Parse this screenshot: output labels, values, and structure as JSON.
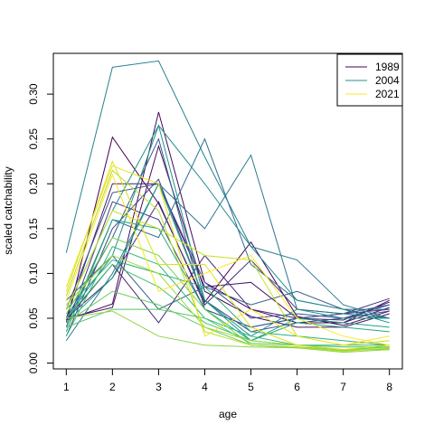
{
  "chart_data": {
    "type": "line",
    "title": "",
    "xlabel": "age",
    "ylabel": "scaled catchability",
    "x": [
      1,
      2,
      3,
      4,
      5,
      6,
      7,
      8
    ],
    "xlim": [
      0.72,
      8.28
    ],
    "ylim": [
      -0.0065,
      0.3455
    ],
    "xticks": [
      "1",
      "2",
      "3",
      "4",
      "5",
      "6",
      "7",
      "8"
    ],
    "yticks": [
      "0.00",
      "0.05",
      "0.10",
      "0.15",
      "0.20",
      "0.25",
      "0.30"
    ],
    "grid": false,
    "legend_position": "top-right",
    "legend": [
      {
        "label": "1989",
        "color": "#440154"
      },
      {
        "label": "2004",
        "color": "#21908C"
      },
      {
        "label": "2021",
        "color": "#FDE725"
      }
    ],
    "series": [
      {
        "color": "#440154",
        "values": [
          0.045,
          0.252,
          0.178,
          0.068,
          0.135,
          0.052,
          0.042,
          0.058
        ]
      },
      {
        "color": "#46085c",
        "values": [
          0.048,
          0.066,
          0.28,
          0.09,
          0.06,
          0.045,
          0.045,
          0.062
        ]
      },
      {
        "color": "#471063",
        "values": [
          0.05,
          0.062,
          0.242,
          0.08,
          0.052,
          0.04,
          0.04,
          0.055
        ]
      },
      {
        "color": "#481b6d",
        "values": [
          0.05,
          0.2,
          0.2,
          0.085,
          0.09,
          0.05,
          0.045,
          0.07
        ]
      },
      {
        "color": "#482576",
        "values": [
          0.048,
          0.11,
          0.045,
          0.12,
          0.06,
          0.05,
          0.048,
          0.068
        ]
      },
      {
        "color": "#46317e",
        "values": [
          0.05,
          0.095,
          0.18,
          0.065,
          0.115,
          0.06,
          0.055,
          0.072
        ]
      },
      {
        "color": "#443a83",
        "values": [
          0.04,
          0.18,
          0.16,
          0.06,
          0.04,
          0.05,
          0.055,
          0.06
        ]
      },
      {
        "color": "#404588",
        "values": [
          0.03,
          0.15,
          0.205,
          0.07,
          0.035,
          0.045,
          0.05,
          0.065
        ]
      },
      {
        "color": "#3c4f8a",
        "values": [
          0.06,
          0.19,
          0.2,
          0.09,
          0.05,
          0.055,
          0.05,
          0.058
        ]
      },
      {
        "color": "#375a8c",
        "values": [
          0.05,
          0.14,
          0.25,
          0.06,
          0.04,
          0.05,
          0.055,
          0.065
        ]
      },
      {
        "color": "#33638d",
        "values": [
          0.07,
          0.12,
          0.06,
          0.085,
          0.065,
          0.08,
          0.06,
          0.06
        ]
      },
      {
        "color": "#2e6d8e",
        "values": [
          0.04,
          0.16,
          0.14,
          0.25,
          0.11,
          0.07,
          0.06,
          0.05
        ]
      },
      {
        "color": "#2a768e",
        "values": [
          0.025,
          0.1,
          0.2,
          0.15,
          0.232,
          0.06,
          0.055,
          0.05
        ]
      },
      {
        "color": "#26818e",
        "values": [
          0.123,
          0.33,
          0.337,
          0.23,
          0.13,
          0.115,
          0.065,
          0.05
        ]
      },
      {
        "color": "#228b8d",
        "values": [
          0.06,
          0.17,
          0.265,
          0.2,
          0.13,
          0.07,
          0.06,
          0.045
        ]
      },
      {
        "color": "#1f958b",
        "values": [
          0.05,
          0.12,
          0.265,
          0.07,
          0.03,
          0.06,
          0.05,
          0.05
        ]
      },
      {
        "color": "#1fa088",
        "values": [
          0.045,
          0.095,
          0.2,
          0.07,
          0.025,
          0.05,
          0.045,
          0.04
        ]
      },
      {
        "color": "#22a884",
        "values": [
          0.035,
          0.16,
          0.15,
          0.06,
          0.025,
          0.045,
          0.04,
          0.035
        ]
      },
      {
        "color": "#2ab07f",
        "values": [
          0.06,
          0.115,
          0.1,
          0.085,
          0.035,
          0.03,
          0.025,
          0.02
        ]
      },
      {
        "color": "#35b779",
        "values": [
          0.03,
          0.13,
          0.11,
          0.05,
          0.03,
          0.02,
          0.02,
          0.02
        ]
      },
      {
        "color": "#44bf70",
        "values": [
          0.05,
          0.11,
          0.085,
          0.045,
          0.025,
          0.02,
          0.018,
          0.018
        ]
      },
      {
        "color": "#54c568",
        "values": [
          0.04,
          0.06,
          0.06,
          0.05,
          0.022,
          0.02,
          0.015,
          0.015
        ]
      },
      {
        "color": "#66cb5d",
        "values": [
          0.045,
          0.08,
          0.065,
          0.04,
          0.02,
          0.018,
          0.015,
          0.018
        ]
      },
      {
        "color": "#7ad151",
        "values": [
          0.055,
          0.14,
          0.12,
          0.06,
          0.02,
          0.017,
          0.014,
          0.016
        ]
      },
      {
        "color": "#8ed645",
        "values": [
          0.05,
          0.058,
          0.03,
          0.02,
          0.018,
          0.017,
          0.012,
          0.015
        ]
      },
      {
        "color": "#a2da37",
        "values": [
          0.065,
          0.12,
          0.1,
          0.04,
          0.025,
          0.02,
          0.015,
          0.016
        ]
      },
      {
        "color": "#b5de2b",
        "values": [
          0.075,
          0.215,
          0.17,
          0.035,
          0.02,
          0.018,
          0.013,
          0.017
        ]
      },
      {
        "color": "#c8e020",
        "values": [
          0.06,
          0.17,
          0.15,
          0.12,
          0.115,
          0.03,
          0.02,
          0.025
        ]
      },
      {
        "color": "#dde318",
        "values": [
          0.08,
          0.225,
          0.11,
          0.11,
          0.04,
          0.02,
          0.015,
          0.02
        ]
      },
      {
        "color": "#eee51c",
        "values": [
          0.085,
          0.22,
          0.2,
          0.03,
          0.06,
          0.03,
          0.02,
          0.03
        ]
      },
      {
        "color": "#fde725",
        "values": [
          0.07,
          0.21,
          0.08,
          0.1,
          0.12,
          0.05,
          0.03,
          0.02
        ]
      }
    ]
  }
}
